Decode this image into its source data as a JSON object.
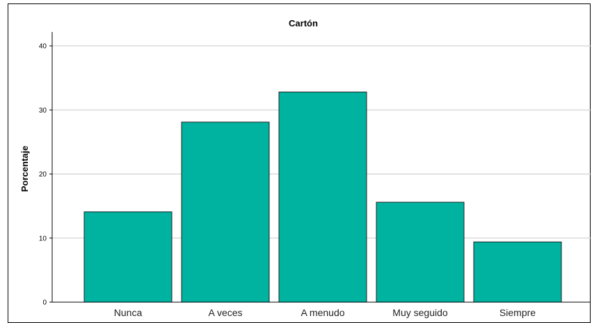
{
  "chart_data": {
    "type": "bar",
    "title": "Cartón",
    "xlabel": "",
    "ylabel": "Porcentaje",
    "categories": [
      "Nunca",
      "A veces",
      "A menudo",
      "Muy seguido",
      "Siempre"
    ],
    "values": [
      14.1,
      28.1,
      32.8,
      15.6,
      9.4
    ],
    "ylim": [
      0,
      42
    ],
    "yticks": [
      0,
      10,
      20,
      30,
      40
    ],
    "grid": true,
    "legend": "none",
    "colors": {
      "bar": "#00b2a0",
      "bar_edge": "#222222"
    }
  }
}
